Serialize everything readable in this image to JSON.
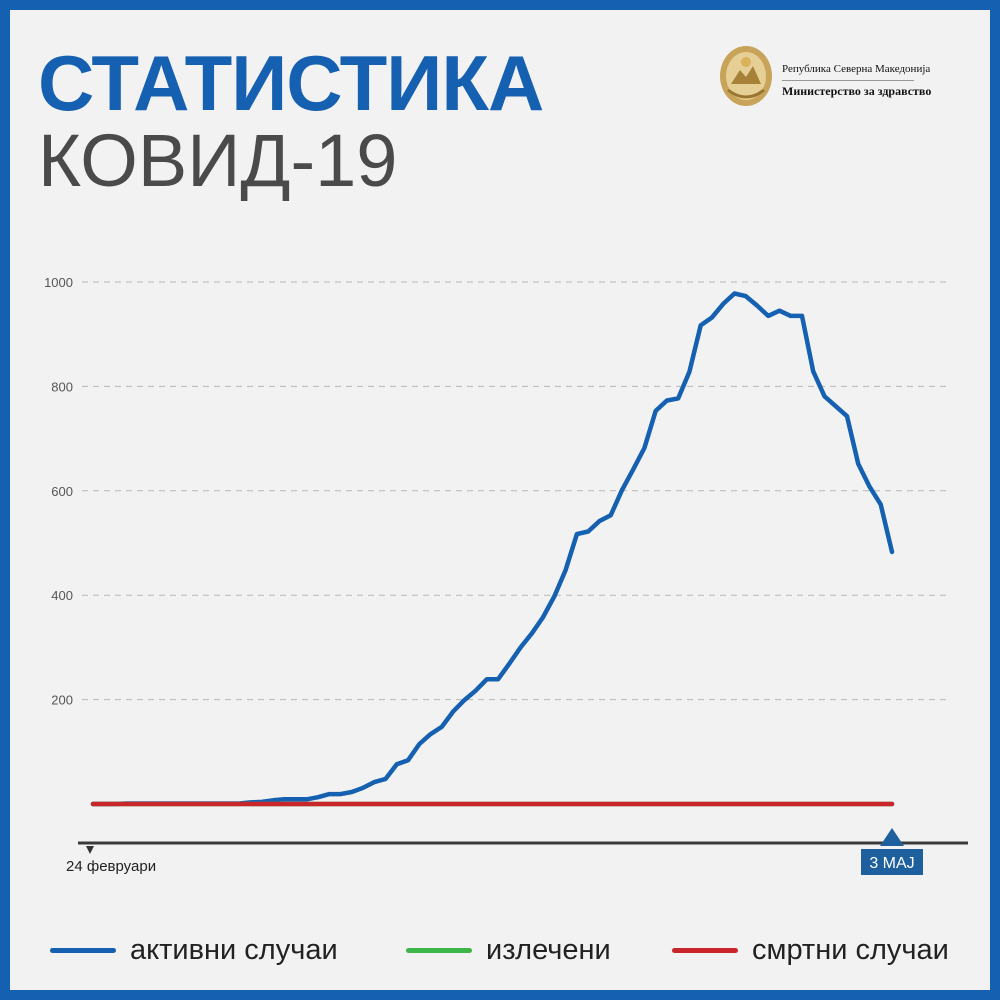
{
  "header": {
    "title": "СТАТИСТИКА",
    "subtitle": "КОВИД-19",
    "ministry_country": "Република Северна Македонија",
    "ministry_name": "Министерство за здравство"
  },
  "colors": {
    "brand_blue": "#1560b0",
    "active": "#1560b0",
    "recovered": "#3db548",
    "deaths": "#c9262c",
    "marker": "#1e5f9d"
  },
  "chart_data": {
    "type": "line",
    "ylim": [
      0,
      1000
    ],
    "yticks": [
      200,
      400,
      600,
      800,
      1000
    ],
    "grid": true,
    "legend_position": "bottom",
    "x_start_label": "24 февруари",
    "x_end_label": "3 МАЈ",
    "x_start": "2020-02-24",
    "x_end": "2020-05-03",
    "series": [
      {
        "name": "активни случаи",
        "color": "#1560b0",
        "values": [
          0,
          0,
          0,
          1,
          1,
          1,
          1,
          1,
          1,
          1,
          1,
          1,
          1,
          1,
          3,
          4,
          7,
          9,
          9,
          9,
          13,
          19,
          19,
          23,
          31,
          42,
          48,
          76,
          84,
          115,
          134,
          148,
          177,
          199,
          217,
          239,
          239,
          269,
          300,
          327,
          358,
          398,
          448,
          517,
          522,
          542,
          553,
          601,
          641,
          682,
          753,
          773,
          777,
          828,
          917,
          932,
          958,
          978,
          973,
          955,
          935,
          945,
          935,
          935,
          829,
          781,
          762,
          743,
          652,
          608,
          574,
          483
        ]
      },
      {
        "name": "излечени",
        "color": "#3db548",
        "values": [
          0,
          0,
          0,
          0,
          0,
          0,
          0,
          0,
          0,
          0,
          0,
          0,
          0,
          0,
          0,
          0,
          0,
          0,
          0,
          0,
          0,
          0,
          0,
          0,
          0,
          0,
          0,
          0,
          0,
          0,
          0,
          0,
          0,
          0,
          0,
          0,
          0,
          0,
          0,
          0,
          0,
          0,
          0,
          0,
          0,
          0,
          0,
          0,
          0,
          0,
          0,
          0,
          0,
          0,
          0,
          0,
          0,
          0,
          0,
          0,
          0,
          0,
          0,
          0,
          0,
          0,
          0,
          0,
          0,
          0,
          0,
          0
        ]
      },
      {
        "name": "смртни случаи",
        "color": "#c9262c",
        "values": [
          0,
          0,
          0,
          0,
          0,
          0,
          0,
          0,
          0,
          0,
          0,
          0,
          0,
          0,
          0,
          0,
          0,
          0,
          0,
          0,
          0,
          0,
          0,
          0,
          0,
          0,
          0,
          0,
          0,
          0,
          0,
          0,
          0,
          0,
          0,
          0,
          0,
          0,
          0,
          0,
          0,
          0,
          0,
          0,
          0,
          0,
          0,
          0,
          0,
          0,
          0,
          0,
          0,
          0,
          0,
          0,
          0,
          0,
          0,
          0,
          0,
          0,
          0,
          0,
          0,
          0,
          0,
          0,
          0,
          0,
          0,
          0
        ]
      }
    ]
  }
}
